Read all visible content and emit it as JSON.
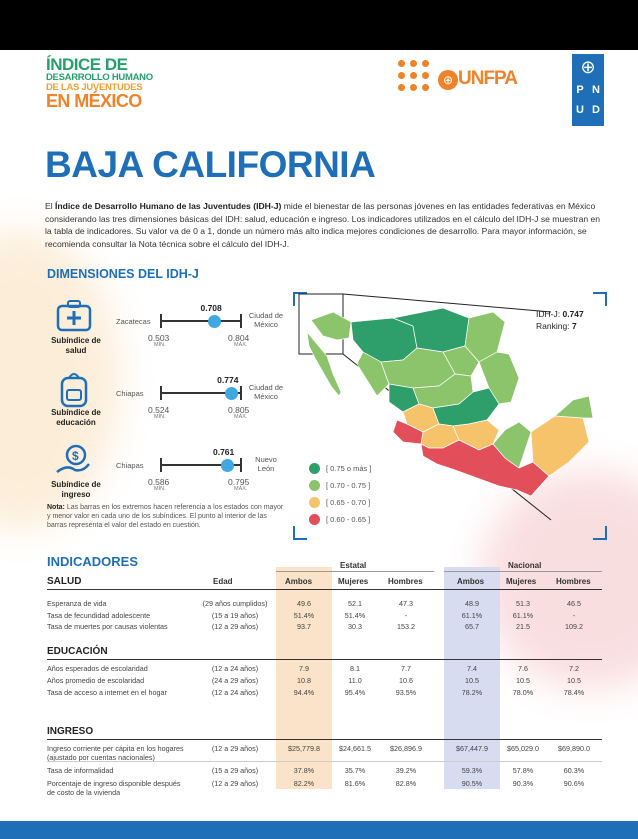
{
  "header": {
    "logo_line1": "ÍNDICE DE",
    "logo_line2": "DESARROLLO HUMANO",
    "logo_line3": "DE LAS JUVENTUDES",
    "logo_line4": "EN MÉXICO",
    "unfpa_label": "UNFPA",
    "pnud_letters": [
      "P",
      "N",
      "U",
      "D"
    ]
  },
  "title": "BAJA CALIFORNIA",
  "intro": {
    "prefix": "El ",
    "bold": "Índice de Desarrollo Humano de las Juventudes (IDH-J)",
    "rest": " mide el bienestar de las personas jóvenes en las entidades federativas en México considerando las tres dimensiones básicas del IDH: salud, educación e ingreso. Los indicadores utilizados en el cálculo del IDH-J se muestran en la tabla de indicadores. Su valor va de 0 a 1, donde un número más alto indica mejores condiciones de desarrollo. Para mayor información, se recomienda consultar la Nota técnica sobre el cálculo del IDH-J."
  },
  "dimensions": {
    "heading": "DIMENSIONES DEL IDH-J",
    "items": [
      {
        "label_line1": "Subíndice de",
        "label_line2": "salud",
        "min_state": "Zacatecas",
        "max_state_line1": "Ciudad de",
        "max_state_line2": "México",
        "min": "0.503",
        "max": "0.804",
        "value": "0.708",
        "value_num": 0.708,
        "min_num": 0.503,
        "max_num": 0.804,
        "icon": "medical-kit-icon"
      },
      {
        "label_line1": "Subíndice de",
        "label_line2": "educación",
        "min_state": "Chiapas",
        "max_state_line1": "Ciudad de",
        "max_state_line2": "México",
        "min": "0.524",
        "max": "0.805",
        "value": "0.774",
        "value_num": 0.774,
        "min_num": 0.524,
        "max_num": 0.805,
        "icon": "backpack-icon"
      },
      {
        "label_line1": "Subíndice de",
        "label_line2": "ingreso",
        "min_state": "Chiapas",
        "max_state_line1": "Nuevo",
        "max_state_line2": "León",
        "min": "0.586",
        "max": "0.795",
        "value": "0.761",
        "value_num": 0.761,
        "min_num": 0.586,
        "max_num": 0.795,
        "icon": "money-hand-icon"
      }
    ],
    "min_tag": "MÍN.",
    "max_tag": "MÁX.",
    "note_bold": "Nota:",
    "note_text": " Las barras en los extremos hacen referencia a los estados con mayor y menor valor en cada uno de los subíndices. El punto al interior de las barras representa el valor del estado en cuestión."
  },
  "map": {
    "idhj_label": "IDH-J:",
    "idhj_value": "0.747",
    "ranking_label": "Ranking:",
    "ranking_value": "7",
    "legend": [
      {
        "label": "[ 0.75 o más ]",
        "color": "#2e9e6a"
      },
      {
        "label": "[ 0.70 - 0.75 ]",
        "color": "#8cc46b"
      },
      {
        "label": "[ 0.65 - 0.70 ]",
        "color": "#f6c36a"
      },
      {
        "label": "[ 0.60 - 0.65 ]",
        "color": "#e24e5a"
      }
    ]
  },
  "indicators": {
    "heading": "INDICADORES",
    "col_estatal": "Estatal",
    "col_nacional": "Nacional",
    "col_edad": "Edad",
    "col_ambos": "Ambos",
    "col_mujeres": "Mujeres",
    "col_hombres": "Hombres",
    "sections": [
      {
        "name": "SALUD",
        "rows": [
          {
            "label": "Esperanza de vida",
            "age": "(29 años cumplidos)",
            "e_ambos": "49.6",
            "e_muj": "52.1",
            "e_hom": "47.3",
            "n_ambos": "48.9",
            "n_muj": "51.3",
            "n_hom": "46.5"
          },
          {
            "label": "Tasa de fecundidad adolescente",
            "age": "(15 a 19 años)",
            "e_ambos": "51.4%",
            "e_muj": "51.4%",
            "e_hom": "-",
            "n_ambos": "61.1%",
            "n_muj": "61.1%",
            "n_hom": "-"
          },
          {
            "label": "Tasa de muertes por causas violentas",
            "age": "(12 a 29 años)",
            "e_ambos": "93.7",
            "e_muj": "30.3",
            "e_hom": "153.2",
            "n_ambos": "65.7",
            "n_muj": "21.5",
            "n_hom": "109.2"
          }
        ]
      },
      {
        "name": "EDUCACIÓN",
        "rows": [
          {
            "label": "Años esperados de escolaridad",
            "age": "(12 a 24 años)",
            "e_ambos": "7.9",
            "e_muj": "8.1",
            "e_hom": "7.7",
            "n_ambos": "7.4",
            "n_muj": "7.6",
            "n_hom": "7.2"
          },
          {
            "label": "Años promedio de escolaridad",
            "age": "(24 a 29 años)",
            "e_ambos": "10.8",
            "e_muj": "11.0",
            "e_hom": "10.6",
            "n_ambos": "10.5",
            "n_muj": "10.5",
            "n_hom": "10.5"
          },
          {
            "label": "Tasa de acceso a internet en el hogar",
            "age": "(12 a 24 años)",
            "e_ambos": "94.4%",
            "e_muj": "95.4%",
            "e_hom": "93.5%",
            "n_ambos": "78.2%",
            "n_muj": "78.0%",
            "n_hom": "78.4%"
          }
        ]
      },
      {
        "name": "INGRESO",
        "rows": [
          {
            "label": "Ingreso corriente per cápita en los hogares (ajustado por cuentas nacionales)",
            "age": "(12 a 29 años)",
            "e_ambos": "$25,779.8",
            "e_muj": "$24,661.5",
            "e_hom": "$26,896.9",
            "n_ambos": "$67,447.9",
            "n_muj": "$65,029.0",
            "n_hom": "$69,890.0"
          },
          {
            "label": "Tasa de informalidad",
            "age": "(15 a 29 años)",
            "e_ambos": "37.8%",
            "e_muj": "35.7%",
            "e_hom": "39.2%",
            "n_ambos": "59.3%",
            "n_muj": "57.8%",
            "n_hom": "60.3%"
          },
          {
            "label": "Porcentaje de ingreso disponible después de costo de la vivienda",
            "age": "(12 a 29 años)",
            "e_ambos": "82.2%",
            "e_muj": "81.6%",
            "e_hom": "82.8%",
            "n_ambos": "90.5%",
            "n_muj": "90.3%",
            "n_hom": "90.6%"
          }
        ]
      }
    ]
  }
}
